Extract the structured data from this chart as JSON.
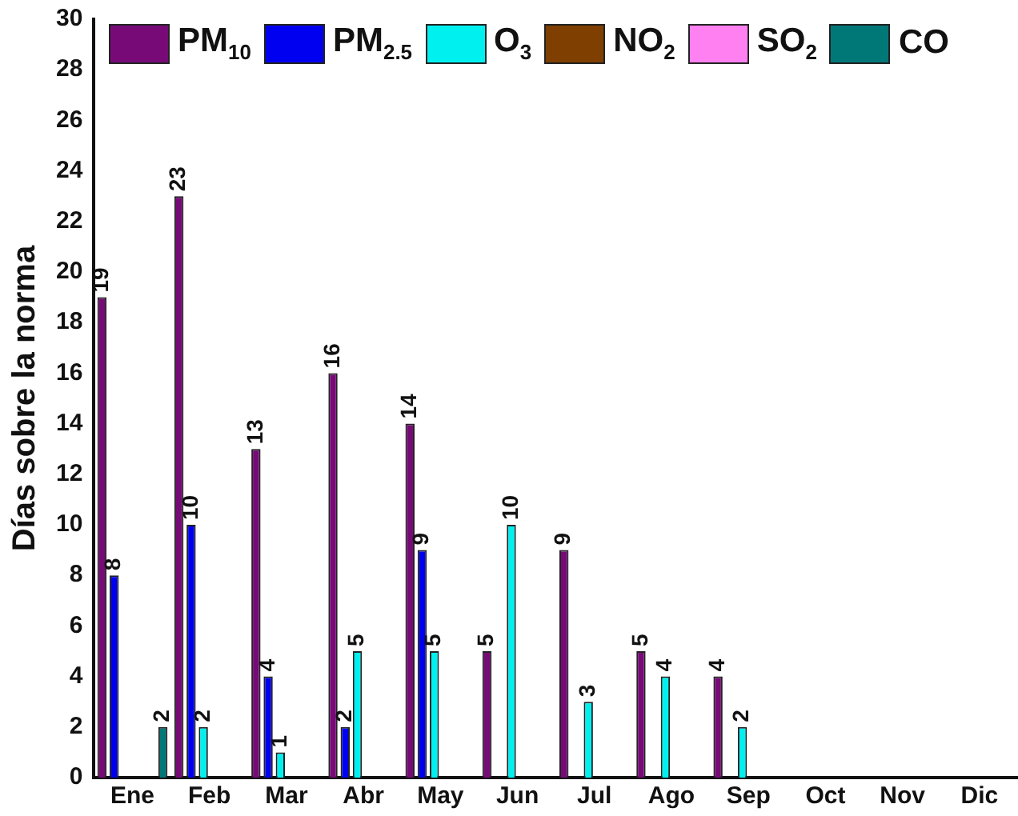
{
  "chart_data": {
    "type": "bar",
    "ylabel": "Días sobre la norma",
    "categories": [
      "Ene",
      "Feb",
      "Mar",
      "Abr",
      "May",
      "Jun",
      "Jul",
      "Ago",
      "Sep",
      "Oct",
      "Nov",
      "Dic"
    ],
    "series": [
      {
        "name": "PM$_{10}$",
        "color": "#780a78",
        "values": [
          19,
          23,
          13,
          16,
          14,
          5,
          9,
          5,
          4,
          null,
          null,
          null
        ]
      },
      {
        "name": "PM$_{2.5}$",
        "color": "#0000f0",
        "values": [
          8,
          10,
          4,
          2,
          9,
          null,
          null,
          null,
          null,
          null,
          null,
          null
        ]
      },
      {
        "name": "O$_{3}$",
        "color": "#00f0f0",
        "values": [
          null,
          2,
          1,
          5,
          5,
          10,
          3,
          4,
          2,
          null,
          null,
          null
        ]
      },
      {
        "name": "NO$_{2}$",
        "color": "#7f3f00",
        "values": [
          null,
          null,
          null,
          null,
          null,
          null,
          null,
          null,
          null,
          null,
          null,
          null
        ]
      },
      {
        "name": "SO$_{2}$",
        "color": "#ff80f0",
        "values": [
          null,
          null,
          null,
          null,
          null,
          null,
          null,
          null,
          null,
          null,
          null,
          null
        ]
      },
      {
        "name": "CO",
        "color": "#007878",
        "values": [
          2,
          null,
          null,
          null,
          null,
          null,
          null,
          null,
          null,
          null,
          null,
          null
        ]
      }
    ],
    "ylim": [
      0,
      30
    ],
    "yticks": [
      0,
      2,
      4,
      6,
      8,
      10,
      12,
      14,
      16,
      18,
      20,
      22,
      24,
      26,
      28,
      30
    ],
    "grid": false,
    "legend": "top",
    "data_labels": true
  }
}
